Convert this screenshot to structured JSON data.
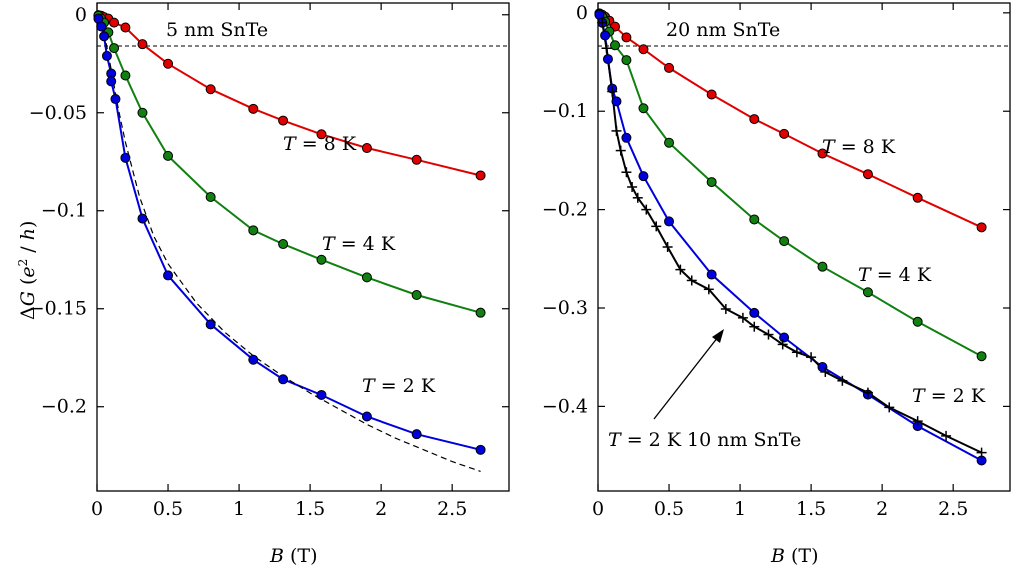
{
  "chart_data": [
    {
      "type": "scatter",
      "title": "5 nm SnTe",
      "xlabel": "B (T)",
      "ylabel": "ΔG (e²/h)",
      "xlim": [
        0,
        2.9
      ],
      "ylim": [
        -0.243,
        0.006
      ],
      "xticks": [
        0,
        0.5,
        1,
        1.5,
        2,
        2.5
      ],
      "xtick_labels": [
        "0",
        "0.5",
        "1",
        "1.5",
        "2",
        "2.5"
      ],
      "yticks": [
        0,
        -0.05,
        -0.1,
        -0.15,
        -0.2
      ],
      "ytick_labels": [
        "0",
        "−0.05",
        "−0.1",
        "−0.15",
        "−0.2"
      ],
      "zero_line": true,
      "series": [
        {
          "label": "T = 8 K",
          "color": "#e00000",
          "x": [
            0.01,
            0.03,
            0.05,
            0.08,
            0.12,
            0.2,
            0.32,
            0.5,
            0.8,
            1.1,
            1.31,
            1.58,
            1.9,
            2.25,
            2.7
          ],
          "y": [
            -0.0002,
            -0.0005,
            -0.0012,
            -0.002,
            -0.004,
            -0.0065,
            -0.015,
            -0.025,
            -0.038,
            -0.048,
            -0.054,
            -0.061,
            -0.068,
            -0.074,
            -0.082
          ]
        },
        {
          "label": "T = 4 K",
          "color": "#108010",
          "x": [
            0.01,
            0.03,
            0.05,
            0.08,
            0.12,
            0.2,
            0.32,
            0.5,
            0.8,
            1.1,
            1.31,
            1.58,
            1.9,
            2.25,
            2.7
          ],
          "y": [
            -0.0005,
            -0.002,
            -0.004,
            -0.009,
            -0.017,
            -0.031,
            -0.05,
            -0.072,
            -0.093,
            -0.11,
            -0.117,
            -0.125,
            -0.134,
            -0.143,
            -0.152
          ]
        },
        {
          "label": "T = 2 K",
          "color": "#0000dd",
          "x": [
            0.01,
            0.03,
            0.05,
            0.07,
            0.1,
            0.1,
            0.13,
            0.2,
            0.32,
            0.5,
            0.8,
            1.1,
            1.31,
            1.58,
            1.9,
            2.25,
            2.7
          ],
          "y": [
            -0.002,
            -0.006,
            -0.011,
            -0.021,
            -0.03,
            -0.034,
            -0.043,
            -0.073,
            -0.104,
            -0.133,
            -0.158,
            -0.176,
            -0.186,
            -0.194,
            -0.205,
            -0.214,
            -0.222
          ]
        },
        {
          "label": "",
          "color": "#000000",
          "style": "dashed",
          "x": [
            0.05,
            0.1,
            0.15,
            0.2,
            0.3,
            0.4,
            0.5,
            0.7,
            0.9,
            1.1,
            1.3,
            1.5,
            1.7,
            1.9,
            2.1,
            2.3,
            2.5,
            2.7
          ],
          "y": [
            -0.009,
            -0.028,
            -0.048,
            -0.065,
            -0.093,
            -0.113,
            -0.127,
            -0.147,
            -0.162,
            -0.174,
            -0.184,
            -0.193,
            -0.201,
            -0.209,
            -0.216,
            -0.222,
            -0.228,
            -0.233
          ]
        }
      ],
      "annotations": [
        {
          "text": "T = 8 K"
        },
        {
          "text": "T = 4 K"
        },
        {
          "text": "T = 2 K"
        }
      ]
    },
    {
      "type": "scatter",
      "title": "20 nm SnTe",
      "xlabel": "B (T)",
      "ylabel": "",
      "xlim": [
        0,
        2.9
      ],
      "ylim": [
        -0.486,
        0.01
      ],
      "xticks": [
        0,
        0.5,
        1,
        1.5,
        2,
        2.5
      ],
      "xtick_labels": [
        "0",
        "0.5",
        "1",
        "1.5",
        "2",
        "2.5"
      ],
      "yticks": [
        0,
        -0.1,
        -0.2,
        -0.3,
        -0.4
      ],
      "ytick_labels": [
        "0",
        "−0.1",
        "−0.2",
        "−0.3",
        "−0.4"
      ],
      "zero_line": true,
      "series": [
        {
          "label": "T = 8 K",
          "color": "#e00000",
          "x": [
            0.01,
            0.03,
            0.05,
            0.08,
            0.12,
            0.2,
            0.32,
            0.5,
            0.8,
            1.1,
            1.31,
            1.58,
            1.9,
            2.25,
            2.7
          ],
          "y": [
            -0.0005,
            -0.002,
            -0.004,
            -0.008,
            -0.014,
            -0.025,
            -0.037,
            -0.056,
            -0.083,
            -0.108,
            -0.123,
            -0.143,
            -0.164,
            -0.188,
            -0.218
          ]
        },
        {
          "label": "T = 4 K",
          "color": "#108010",
          "x": [
            0.01,
            0.03,
            0.05,
            0.08,
            0.12,
            0.2,
            0.32,
            0.5,
            0.8,
            1.1,
            1.31,
            1.58,
            1.9,
            2.25,
            2.7
          ],
          "y": [
            -0.001,
            -0.004,
            -0.009,
            -0.019,
            -0.033,
            -0.048,
            -0.097,
            -0.132,
            -0.172,
            -0.21,
            -0.232,
            -0.258,
            -0.284,
            -0.314,
            -0.349
          ]
        },
        {
          "label": "T = 2 K",
          "color": "#0000dd",
          "x": [
            0.01,
            0.03,
            0.05,
            0.07,
            0.1,
            0.13,
            0.2,
            0.32,
            0.5,
            0.8,
            1.1,
            1.31,
            1.58,
            1.9,
            2.25,
            2.7
          ],
          "y": [
            -0.002,
            -0.01,
            -0.023,
            -0.047,
            -0.077,
            -0.09,
            -0.127,
            -0.166,
            -0.212,
            -0.266,
            -0.305,
            -0.33,
            -0.36,
            -0.388,
            -0.42,
            -0.455
          ]
        },
        {
          "label": "T = 2 K 10 nm SnTe",
          "color": "#000000",
          "marker": "plus",
          "x": [
            0.03,
            0.06,
            0.1,
            0.13,
            0.16,
            0.2,
            0.24,
            0.28,
            0.34,
            0.41,
            0.49,
            0.58,
            0.66,
            0.78,
            0.9,
            1.02,
            1.1,
            1.2,
            1.3,
            1.4,
            1.5,
            1.6,
            1.72,
            1.9,
            2.05,
            2.25,
            2.45,
            2.7
          ],
          "y": [
            -0.01,
            -0.036,
            -0.08,
            -0.12,
            -0.14,
            -0.162,
            -0.177,
            -0.188,
            -0.2,
            -0.217,
            -0.238,
            -0.261,
            -0.272,
            -0.281,
            -0.301,
            -0.31,
            -0.319,
            -0.327,
            -0.337,
            -0.345,
            -0.35,
            -0.365,
            -0.374,
            -0.386,
            -0.401,
            -0.415,
            -0.43,
            -0.447
          ]
        }
      ],
      "annotations": [
        {
          "text": "T = 8 K"
        },
        {
          "text": "T = 4 K"
        },
        {
          "text": "T = 2 K"
        },
        {
          "text": "T = 2 K 10 nm SnTe"
        }
      ]
    }
  ]
}
